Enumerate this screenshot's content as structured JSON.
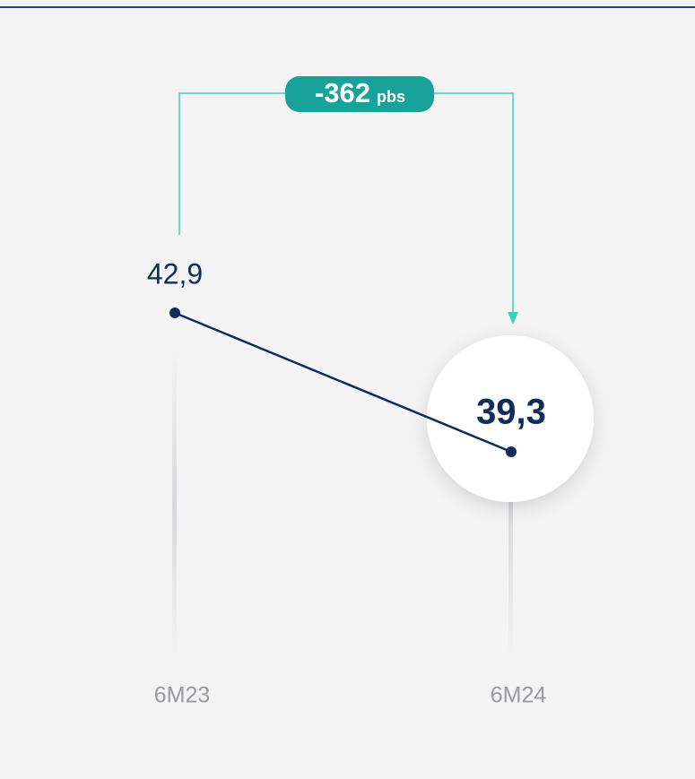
{
  "chart_data": {
    "type": "line",
    "categories": [
      "6M23",
      "6M24"
    ],
    "values": [
      42.9,
      39.3
    ],
    "value_labels": [
      "42,9",
      "39,3"
    ],
    "color": "#0f2d5c",
    "annotation": "-362",
    "annotation_unit": "pbs"
  }
}
